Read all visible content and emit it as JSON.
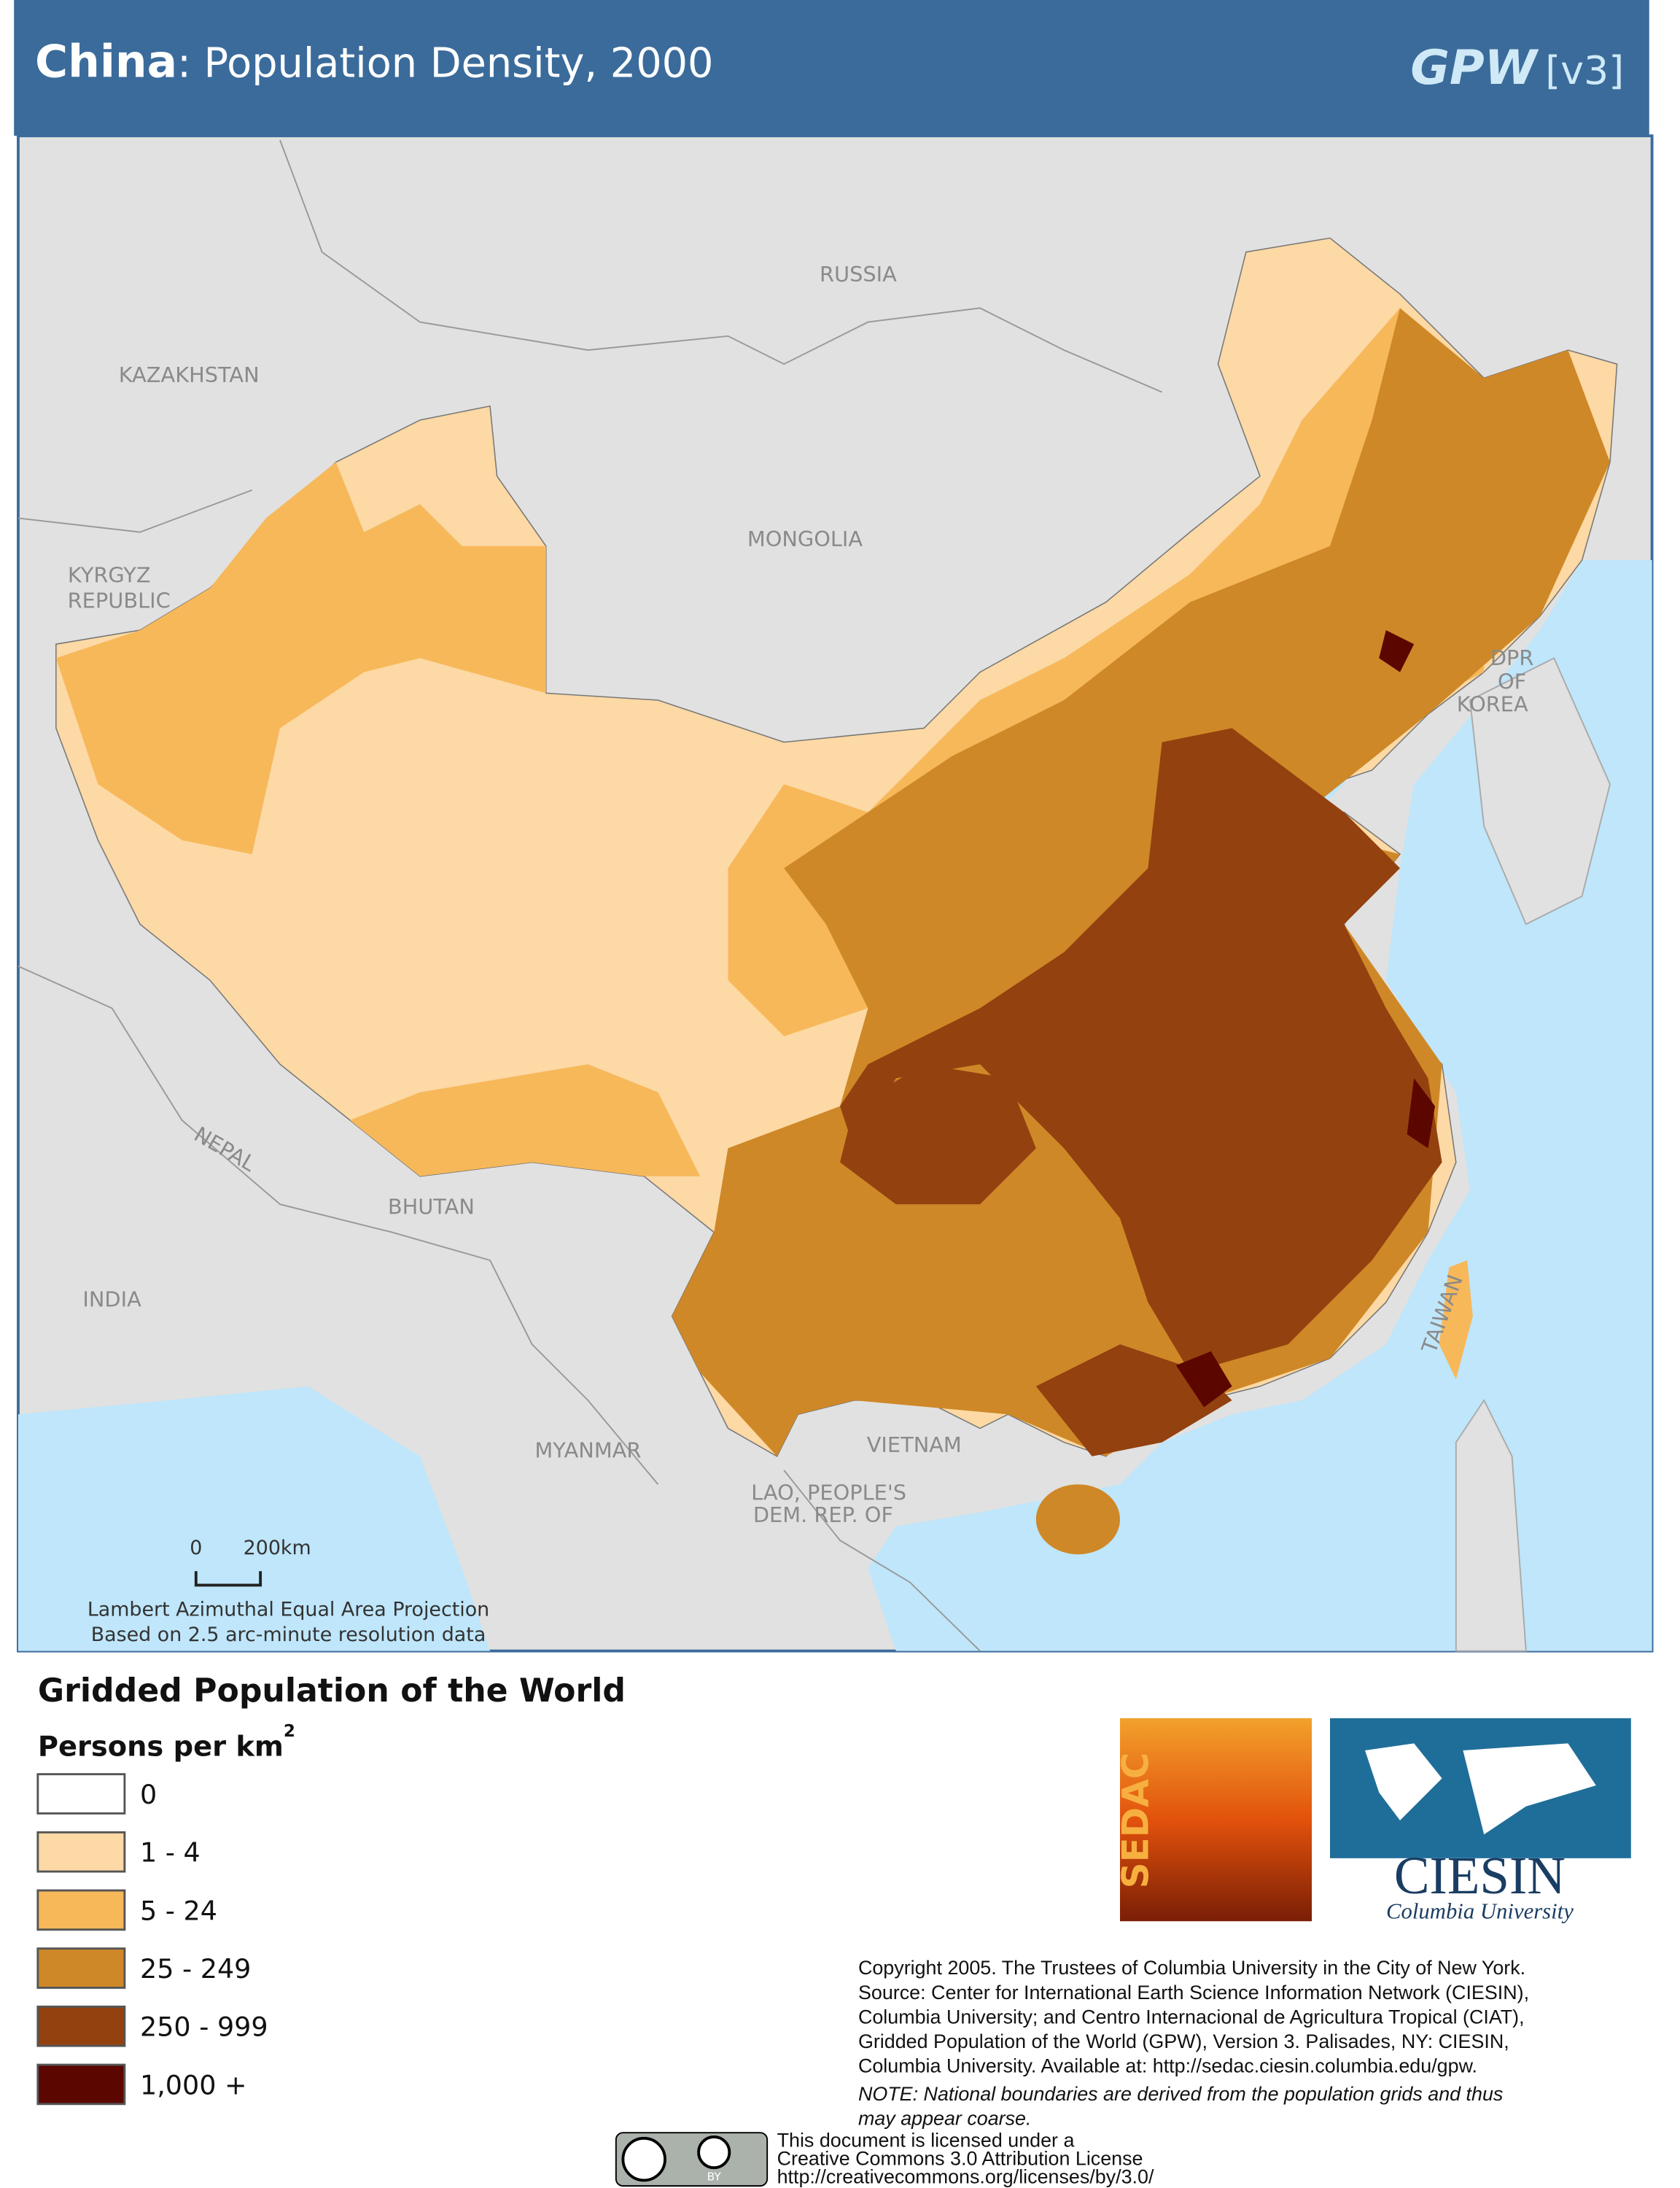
{
  "header": {
    "region": "China",
    "title": ": Population Density, 2000",
    "brand": "GPW",
    "version": "[v3]"
  },
  "map": {
    "labels": {
      "russia": "RUSSIA",
      "kazakhstan": "KAZAKHSTAN",
      "mongolia": "MONGOLIA",
      "kyrgyz_1": "KYRGYZ",
      "kyrgyz_2": "REPUBLIC",
      "dpr_1": "DPR",
      "dpr_2": "OF",
      "dpr_3": "KOREA",
      "nepal": "NEPAL",
      "bhutan": "BHUTAN",
      "india": "INDIA",
      "myanmar": "MYANMAR",
      "vietnam": "VIETNAM",
      "lao_1": "LAO, PEOPLE'S",
      "lao_2": "DEM. REP. OF",
      "taiwan": "TAIWAN"
    },
    "scale_bar": {
      "start": "0",
      "end": "200km"
    },
    "projection": "Lambert Azimuthal Equal Area Projection",
    "resolution": "Based on 2.5 arc-minute resolution data"
  },
  "legend": {
    "title": "Gridded Population of the World",
    "unit": "Persons per km",
    "unit_sup": "2",
    "items": [
      {
        "label": "0",
        "color": "#ffffff"
      },
      {
        "label": "1 - 4",
        "color": "#fcd9a5"
      },
      {
        "label": "5 - 24",
        "color": "#f7b85a"
      },
      {
        "label": "25 - 249",
        "color": "#cf8827"
      },
      {
        "label": "250 - 999",
        "color": "#93410f"
      },
      {
        "label": "1,000 +",
        "color": "#5c0600"
      }
    ]
  },
  "logos": {
    "sedac": "SEDAC",
    "ciesin": "CIESIN",
    "university": "Columbia University"
  },
  "credits": {
    "lines": [
      "Copyright 2005. The Trustees of Columbia University in the City of New York.",
      "Source: Center for International Earth Science Information Network (CIESIN),",
      "Columbia University; and Centro Internacional de Agricultura Tropical (CIAT),",
      "Gridded Population of the World (GPW),  Version 3.  Palisades, NY: CIESIN,",
      "Columbia University.   Available at:    http://sedac.ciesin.columbia.edu/gpw."
    ],
    "note": [
      "NOTE: National boundaries are derived from the population grids and thus",
      "may appear coarse."
    ],
    "license": [
      "This document is licensed under a",
      "Creative Commons 3.0 Attribution License",
      "http://creativecommons.org/licenses/by/3.0/"
    ],
    "badge": "BY"
  }
}
